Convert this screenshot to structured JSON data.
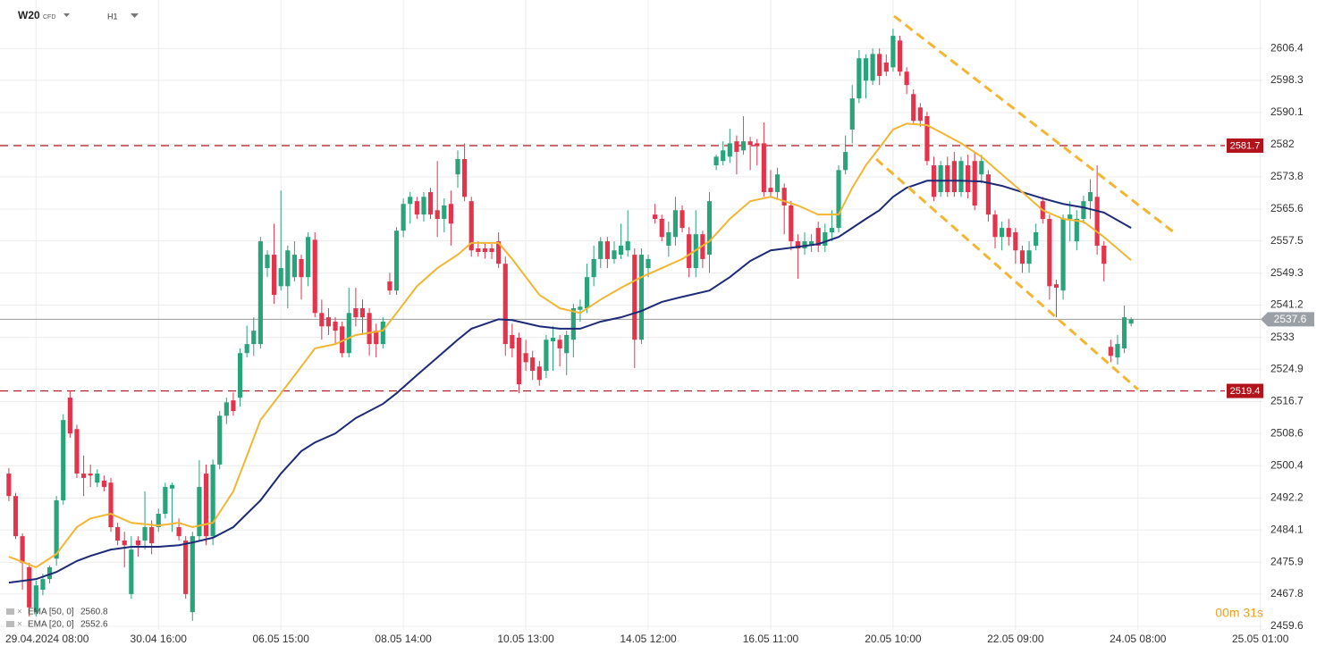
{
  "chart_data": {
    "type": "candlestick",
    "symbol": "W20",
    "instrument_type": "CFD",
    "interval": "H1",
    "countdown": "00m 31s",
    "up_color": "#28a37a",
    "down_color": "#e3344c",
    "candles": [
      [
        2498.4,
        2499.8,
        2491.4,
        2492.7
      ],
      [
        2492.7,
        2493.5,
        2481.8,
        2482.5
      ],
      [
        2482.5,
        2483.2,
        2468.9,
        2475.7
      ],
      [
        2474.6,
        2475.7,
        2462.1,
        2464.4
      ],
      [
        2463.2,
        2471.2,
        2462.1,
        2470.0
      ],
      [
        2468.9,
        2473.0,
        2467.5,
        2471.6
      ],
      [
        2471.6,
        2475.0,
        2470.5,
        2474.6
      ],
      [
        2476.8,
        2492.7,
        2475.0,
        2491.6
      ],
      [
        2491.6,
        2513.5,
        2490.5,
        2512.0
      ],
      [
        2517.7,
        2519.5,
        2507.5,
        2508.6
      ],
      [
        2509.7,
        2510.8,
        2497.3,
        2498.4
      ],
      [
        2498.4,
        2503.0,
        2492.7,
        2497.3
      ],
      [
        2498.4,
        2500.7,
        2495.0,
        2497.9
      ],
      [
        2496.1,
        2499.5,
        2495.0,
        2498.4
      ],
      [
        2496.6,
        2497.9,
        2493.9,
        2495.0
      ],
      [
        2496.1,
        2497.3,
        2483.6,
        2484.8
      ],
      [
        2484.8,
        2485.9,
        2480.2,
        2481.4
      ],
      [
        2481.4,
        2483.6,
        2474.6,
        2480.2
      ],
      [
        2467.8,
        2482.5,
        2466.6,
        2479.1
      ],
      [
        2481.4,
        2482.5,
        2477.3,
        2480.2
      ],
      [
        2481.4,
        2493.9,
        2479.1,
        2484.8
      ],
      [
        2484.8,
        2486.5,
        2477.9,
        2480.7
      ],
      [
        2484.8,
        2489.5,
        2483.6,
        2488.2
      ],
      [
        2488.2,
        2496.1,
        2487.0,
        2495.0
      ],
      [
        2494.6,
        2496.1,
        2483.6,
        2495.5
      ],
      [
        2484.8,
        2487.0,
        2481.4,
        2482.5
      ],
      [
        2481.4,
        2482.5,
        2466.6,
        2467.8
      ],
      [
        2463.2,
        2483.6,
        2461.0,
        2482.5
      ],
      [
        2482.5,
        2501.8,
        2481.4,
        2495.0
      ],
      [
        2498.4,
        2500.7,
        2480.2,
        2482.5
      ],
      [
        2482.5,
        2502.0,
        2480.2,
        2500.7
      ],
      [
        2500.7,
        2514.3,
        2499.5,
        2513.1
      ],
      [
        2513.1,
        2517.7,
        2511.0,
        2516.5
      ],
      [
        2517.0,
        2519.0,
        2513.1,
        2514.3
      ],
      [
        2517.7,
        2530.2,
        2515.4,
        2529.0
      ],
      [
        2529.0,
        2536.0,
        2527.9,
        2531.3
      ],
      [
        2531.3,
        2538.1,
        2528.3,
        2534.7
      ],
      [
        2531.3,
        2558.5,
        2530.2,
        2557.4
      ],
      [
        2550.6,
        2555.1,
        2548.3,
        2554.0
      ],
      [
        2554.0,
        2561.9,
        2541.5,
        2543.8
      ],
      [
        2546.0,
        2570.3,
        2544.9,
        2550.6
      ],
      [
        2546.0,
        2556.3,
        2540.4,
        2555.1
      ],
      [
        2548.3,
        2557.4,
        2547.2,
        2554.0
      ],
      [
        2552.9,
        2554.0,
        2542.6,
        2548.3
      ],
      [
        2548.3,
        2559.7,
        2546.0,
        2558.5
      ],
      [
        2557.8,
        2559.7,
        2538.1,
        2539.2
      ],
      [
        2539.2,
        2542.6,
        2532.4,
        2535.8
      ],
      [
        2538.1,
        2540.4,
        2533.6,
        2535.8
      ],
      [
        2537.0,
        2538.1,
        2531.3,
        2534.7
      ],
      [
        2535.8,
        2537.0,
        2527.9,
        2529.0
      ],
      [
        2529.0,
        2545.6,
        2527.9,
        2539.2
      ],
      [
        2540.4,
        2545.6,
        2535.8,
        2538.1
      ],
      [
        2540.4,
        2542.6,
        2533.6,
        2538.1
      ],
      [
        2539.2,
        2540.4,
        2528.3,
        2531.3
      ],
      [
        2534.7,
        2536.5,
        2527.9,
        2531.3
      ],
      [
        2531.3,
        2538.1,
        2530.2,
        2537.0
      ],
      [
        2547.2,
        2549.4,
        2543.8,
        2544.9
      ],
      [
        2544.9,
        2561.0,
        2543.8,
        2560.1
      ],
      [
        2560.1,
        2568.3,
        2558.5,
        2566.9
      ],
      [
        2566.9,
        2569.9,
        2561.9,
        2568.7
      ],
      [
        2567.6,
        2568.7,
        2563.1,
        2564.2
      ],
      [
        2564.2,
        2569.9,
        2562.4,
        2568.7
      ],
      [
        2569.9,
        2571.0,
        2563.1,
        2564.2
      ],
      [
        2565.3,
        2577.8,
        2558.5,
        2563.1
      ],
      [
        2563.1,
        2568.3,
        2559.7,
        2566.5
      ],
      [
        2566.9,
        2570.3,
        2556.3,
        2561.9
      ],
      [
        2574.4,
        2580.5,
        2571.0,
        2578.3
      ],
      [
        2578.3,
        2582.3,
        2567.6,
        2568.7
      ],
      [
        2567.6,
        2568.7,
        2553.5,
        2555.1
      ],
      [
        2555.6,
        2557.4,
        2553.5,
        2554.7
      ],
      [
        2555.6,
        2557.0,
        2553.0,
        2554.7
      ],
      [
        2555.6,
        2556.7,
        2552.9,
        2554.7
      ],
      [
        2557.4,
        2559.7,
        2550.6,
        2551.7
      ],
      [
        2551.7,
        2553.5,
        2528.3,
        2531.3
      ],
      [
        2533.6,
        2536.5,
        2527.9,
        2530.2
      ],
      [
        2532.9,
        2534.2,
        2518.8,
        2521.1
      ],
      [
        2529.0,
        2532.4,
        2524.5,
        2526.7
      ],
      [
        2527.9,
        2529.6,
        2522.2,
        2524.5
      ],
      [
        2525.6,
        2527.0,
        2520.7,
        2522.2
      ],
      [
        2524.5,
        2533.6,
        2522.7,
        2532.4
      ],
      [
        2532.0,
        2535.8,
        2524.5,
        2532.9
      ],
      [
        2532.4,
        2533.6,
        2525.6,
        2530.2
      ],
      [
        2529.0,
        2534.7,
        2523.4,
        2533.6
      ],
      [
        2532.4,
        2541.5,
        2527.9,
        2540.4
      ],
      [
        2540.0,
        2542.6,
        2537.0,
        2540.8
      ],
      [
        2540.4,
        2551.7,
        2539.2,
        2548.3
      ],
      [
        2548.3,
        2556.3,
        2546.0,
        2552.9
      ],
      [
        2552.9,
        2558.5,
        2550.6,
        2557.4
      ],
      [
        2557.4,
        2558.5,
        2550.6,
        2552.9
      ],
      [
        2552.9,
        2557.4,
        2551.7,
        2555.1
      ],
      [
        2554.0,
        2561.9,
        2552.9,
        2556.3
      ],
      [
        2555.1,
        2565.3,
        2553.5,
        2557.4
      ],
      [
        2554.0,
        2555.6,
        2525.2,
        2532.4
      ],
      [
        2532.4,
        2555.6,
        2531.3,
        2554.0
      ],
      [
        2550.6,
        2554.0,
        2548.3,
        2552.9
      ],
      [
        2564.2,
        2566.9,
        2561.9,
        2563.1
      ],
      [
        2563.1,
        2564.2,
        2557.4,
        2558.5
      ],
      [
        2556.3,
        2562.4,
        2553.5,
        2559.7
      ],
      [
        2558.5,
        2568.7,
        2556.3,
        2565.3
      ],
      [
        2565.3,
        2566.5,
        2559.7,
        2560.8
      ],
      [
        2559.2,
        2561.0,
        2548.3,
        2550.6
      ],
      [
        2550.6,
        2565.3,
        2548.3,
        2559.2
      ],
      [
        2559.2,
        2560.1,
        2550.6,
        2552.9
      ],
      [
        2554.0,
        2569.9,
        2549.4,
        2567.6
      ],
      [
        2576.7,
        2579.4,
        2575.5,
        2578.9
      ],
      [
        2577.8,
        2582.8,
        2576.7,
        2580.5
      ],
      [
        2578.9,
        2586.0,
        2577.3,
        2582.3
      ],
      [
        2582.8,
        2584.3,
        2574.4,
        2580.1
      ],
      [
        2580.5,
        2589.2,
        2579.4,
        2582.8
      ],
      [
        2582.8,
        2583.9,
        2575.5,
        2581.9
      ],
      [
        2582.3,
        2583.4,
        2576.7,
        2581.6
      ],
      [
        2582.3,
        2587.6,
        2568.7,
        2569.9
      ],
      [
        2571.0,
        2575.5,
        2568.7,
        2569.9
      ],
      [
        2569.9,
        2576.1,
        2568.3,
        2574.4
      ],
      [
        2571.0,
        2572.1,
        2559.2,
        2566.5
      ],
      [
        2566.5,
        2567.6,
        2555.1,
        2557.4
      ],
      [
        2557.4,
        2559.2,
        2547.9,
        2555.6
      ],
      [
        2555.6,
        2559.7,
        2554.0,
        2557.4
      ],
      [
        2556.3,
        2559.2,
        2554.7,
        2557.4
      ],
      [
        2560.8,
        2562.4,
        2554.7,
        2556.3
      ],
      [
        2556.3,
        2561.9,
        2554.7,
        2559.7
      ],
      [
        2559.7,
        2565.3,
        2557.4,
        2560.8
      ],
      [
        2560.8,
        2576.7,
        2559.7,
        2575.5
      ],
      [
        2575.5,
        2584.3,
        2574.4,
        2580.1
      ],
      [
        2585.8,
        2597.1,
        2582.3,
        2593.7
      ],
      [
        2593.7,
        2606.0,
        2592.5,
        2603.9
      ],
      [
        2598.2,
        2604.9,
        2593.7,
        2603.9
      ],
      [
        2598.2,
        2606.4,
        2597.1,
        2605.0
      ],
      [
        2605.0,
        2606.4,
        2597.1,
        2599.4
      ],
      [
        2602.8,
        2604.9,
        2599.4,
        2600.5
      ],
      [
        2601.6,
        2611.4,
        2600.5,
        2609.6
      ],
      [
        2608.4,
        2609.6,
        2599.4,
        2600.5
      ],
      [
        2600.5,
        2601.6,
        2594.8,
        2597.1
      ],
      [
        2594.8,
        2596.0,
        2587.3,
        2588.0
      ],
      [
        2591.4,
        2592.5,
        2586.5,
        2588.0
      ],
      [
        2589.2,
        2590.3,
        2576.7,
        2577.8
      ],
      [
        2576.7,
        2578.9,
        2567.6,
        2568.7
      ],
      [
        2569.9,
        2577.8,
        2568.7,
        2576.7
      ],
      [
        2576.7,
        2578.9,
        2568.7,
        2569.9
      ],
      [
        2577.8,
        2580.1,
        2568.7,
        2569.9
      ],
      [
        2569.9,
        2578.9,
        2568.7,
        2577.8
      ],
      [
        2576.7,
        2579.4,
        2568.3,
        2569.9
      ],
      [
        2577.8,
        2580.1,
        2565.3,
        2566.5
      ],
      [
        2574.4,
        2579.4,
        2572.1,
        2577.8
      ],
      [
        2574.4,
        2575.5,
        2562.4,
        2564.2
      ],
      [
        2564.2,
        2565.3,
        2555.6,
        2558.5
      ],
      [
        2558.5,
        2562.4,
        2555.1,
        2560.8
      ],
      [
        2560.8,
        2563.1,
        2556.3,
        2558.5
      ],
      [
        2559.7,
        2560.8,
        2551.7,
        2555.1
      ],
      [
        2555.1,
        2556.3,
        2549.4,
        2551.7
      ],
      [
        2551.7,
        2557.4,
        2549.4,
        2555.1
      ],
      [
        2556.3,
        2561.9,
        2555.1,
        2559.7
      ],
      [
        2567.6,
        2568.7,
        2561.9,
        2563.1
      ],
      [
        2563.1,
        2564.2,
        2542.6,
        2546.0
      ],
      [
        2546.5,
        2547.6,
        2538.1,
        2545.6
      ],
      [
        2544.9,
        2564.2,
        2542.6,
        2563.1
      ],
      [
        2563.1,
        2567.6,
        2557.4,
        2564.2
      ],
      [
        2557.4,
        2565.3,
        2555.1,
        2563.1
      ],
      [
        2563.1,
        2569.0,
        2561.9,
        2567.6
      ],
      [
        2567.6,
        2573.2,
        2563.1,
        2569.9
      ],
      [
        2568.7,
        2576.7,
        2554.0,
        2556.3
      ],
      [
        2556.3,
        2557.4,
        2547.2,
        2551.7
      ],
      [
        2530.6,
        2532.4,
        2526.7,
        2528.3
      ],
      [
        2527.9,
        2533.6,
        2526.1,
        2531.3
      ],
      [
        2530.2,
        2541.1,
        2529.0,
        2538.1
      ],
      [
        2536.5,
        2538.1,
        2535.8,
        2537.6
      ]
    ],
    "series": [
      {
        "name": "EMA [50, 0]",
        "color": "#1c2a78",
        "x": [
          0,
          4,
          7,
          10,
          12,
          15,
          18,
          22,
          25,
          27,
          30,
          33,
          35,
          37,
          40,
          43,
          45,
          48,
          51,
          55,
          57,
          60,
          63,
          66,
          68,
          72,
          74,
          78,
          81,
          84,
          87,
          90,
          93,
          96,
          99,
          103,
          106,
          109,
          112,
          116,
          119,
          122,
          124,
          126,
          128,
          130,
          132,
          135,
          137,
          140,
          143,
          146,
          149,
          152,
          155,
          158,
          161,
          165
        ],
        "values": [
          2470.7,
          2471.6,
          2473.4,
          2476.2,
          2477.5,
          2479.1,
          2479.8,
          2479.8,
          2480.2,
          2480.9,
          2482.1,
          2484.8,
          2488.2,
          2491.6,
          2498.4,
          2504.1,
          2506.3,
          2508.6,
          2512.5,
          2516.1,
          2518.8,
          2523.4,
          2527.9,
          2532.4,
          2535.2,
          2537.6,
          2537.4,
          2535.8,
          2535.2,
          2535.2,
          2537.0,
          2538.1,
          2539.7,
          2542.0,
          2543.3,
          2544.9,
          2548.3,
          2552.4,
          2555.1,
          2556.0,
          2556.7,
          2558.5,
          2560.8,
          2563.1,
          2565.3,
          2568.7,
          2571.0,
          2572.8,
          2572.8,
          2572.8,
          2572.6,
          2571.5,
          2569.9,
          2568.3,
          2566.9,
          2566.0,
          2564.7,
          2560.8
        ]
      },
      {
        "name": "EMA [20, 0]",
        "color": "#f2b632",
        "x": [
          0,
          4,
          7,
          10,
          12,
          15,
          18,
          22,
          25,
          27,
          30,
          33,
          35,
          37,
          40,
          43,
          45,
          48,
          51,
          55,
          57,
          60,
          63,
          66,
          68,
          72,
          74,
          78,
          81,
          84,
          87,
          90,
          93,
          96,
          99,
          103,
          106,
          109,
          112,
          116,
          119,
          122,
          124,
          126,
          128,
          130,
          132,
          135,
          137,
          140,
          143,
          146,
          149,
          152,
          155,
          158,
          161,
          165
        ],
        "values": [
          2477.3,
          2474.6,
          2478.0,
          2484.8,
          2487.0,
          2488.2,
          2485.9,
          2485.2,
          2485.9,
          2484.8,
          2485.9,
          2493.9,
          2502.9,
          2512.0,
          2518.8,
          2525.6,
          2530.2,
          2531.3,
          2533.6,
          2534.7,
          2539.2,
          2546.0,
          2550.6,
          2554.0,
          2557.0,
          2557.0,
          2552.9,
          2543.8,
          2540.4,
          2539.2,
          2542.6,
          2545.6,
          2548.3,
          2550.6,
          2552.9,
          2557.4,
          2563.1,
          2567.6,
          2568.7,
          2566.5,
          2564.2,
          2564.2,
          2571.0,
          2576.7,
          2581.2,
          2585.8,
          2587.3,
          2586.9,
          2585.1,
          2582.3,
          2578.9,
          2574.4,
          2569.9,
          2565.3,
          2563.1,
          2562.4,
          2558.5,
          2552.6
        ]
      }
    ],
    "levels": [
      2581.7,
      2519.4
    ],
    "level_color": "#b3141c",
    "last_price": 2537.6,
    "xlim": [
      -1.3,
      184.3
    ],
    "xticks": [
      {
        "value": 4,
        "label": "29.04.2024 08:00"
      },
      {
        "value": 22,
        "label": "30.04 16:00"
      },
      {
        "value": 40,
        "label": "06.05 15:00"
      },
      {
        "value": 58,
        "label": "08.05 14:00"
      },
      {
        "value": 76,
        "label": "10.05 13:00"
      },
      {
        "value": 94,
        "label": "14.05 12:00"
      },
      {
        "value": 112,
        "label": "16.05 11:00"
      },
      {
        "value": 130,
        "label": "20.05 10:00"
      },
      {
        "value": 148,
        "label": "22.05 09:00"
      },
      {
        "value": 166,
        "label": "24.05 08:00"
      },
      {
        "value": 184,
        "label": "25.05 01:00"
      }
    ],
    "ylim": [
      2458.7,
      2618.7
    ],
    "yticks": [
      2459.6,
      2467.8,
      2475.9,
      2484.1,
      2492.2,
      2500.4,
      2508.6,
      2516.7,
      2524.9,
      2533.0,
      2541.2,
      2549.3,
      2557.5,
      2565.6,
      2573.8,
      2582.0,
      2590.1,
      2598.3,
      2606.4
    ],
    "grid": true
  }
}
